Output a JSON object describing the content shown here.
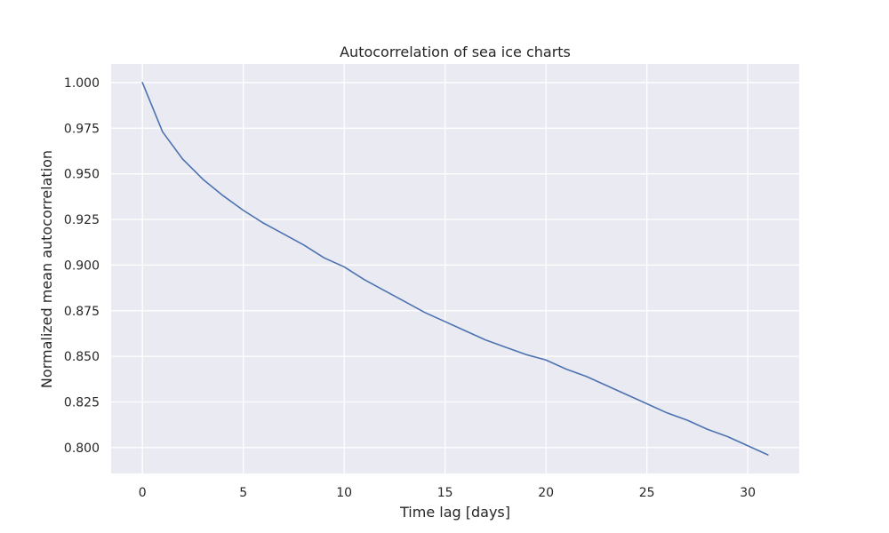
{
  "colors": {
    "background": "#ffffff",
    "plot_background": "#eaeaf2",
    "grid": "#ffffff",
    "line": "#4c72b0",
    "text": "#262626"
  },
  "chart_data": {
    "type": "line",
    "title": "Autocorrelation of sea ice charts",
    "xlabel": "Time lag [days]",
    "ylabel": "Normalized mean autocorrelation",
    "grid": true,
    "legend": "none",
    "xlim": [
      -1.55,
      32.55
    ],
    "ylim": [
      0.7858,
      1.0102
    ],
    "xticks": [
      0,
      5,
      10,
      15,
      20,
      25,
      30
    ],
    "xtick_labels": [
      "0",
      "5",
      "10",
      "15",
      "20",
      "25",
      "30"
    ],
    "yticks": [
      0.8,
      0.825,
      0.85,
      0.875,
      0.9,
      0.925,
      0.95,
      0.975,
      1.0
    ],
    "ytick_labels": [
      "0.800",
      "0.825",
      "0.850",
      "0.875",
      "0.900",
      "0.925",
      "0.950",
      "0.975",
      "1.000"
    ],
    "series": [
      {
        "x": [
          0,
          1,
          2,
          3,
          4,
          5,
          6,
          7,
          8,
          9,
          10,
          11,
          12,
          13,
          14,
          15,
          16,
          17,
          18,
          19,
          20,
          21,
          22,
          23,
          24,
          25,
          26,
          27,
          28,
          29,
          30,
          31
        ],
        "values": [
          1.0,
          0.973,
          0.958,
          0.947,
          0.938,
          0.93,
          0.923,
          0.917,
          0.911,
          0.904,
          0.899,
          0.892,
          0.886,
          0.88,
          0.874,
          0.869,
          0.864,
          0.859,
          0.855,
          0.851,
          0.848,
          0.843,
          0.839,
          0.834,
          0.829,
          0.824,
          0.819,
          0.815,
          0.81,
          0.806,
          0.801,
          0.796
        ]
      }
    ]
  }
}
